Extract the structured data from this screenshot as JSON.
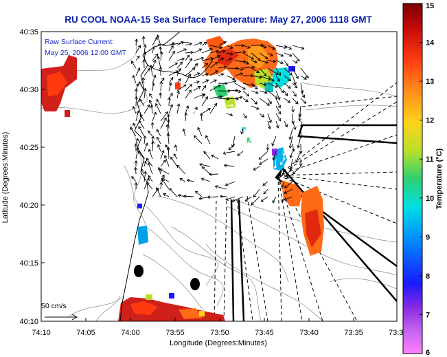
{
  "chart_data": {
    "type": "heatmap",
    "title": "RU COOL  NOAA-15  Sea Surface Temperature:  May 27, 2006 1118 GMT",
    "xlabel": "Longitude (Degrees:Minutes)",
    "ylabel": "Latitude (Degrees:Minutes)",
    "x_tick_labels": [
      "74:10",
      "74:05",
      "74:00",
      "73:55",
      "73:50",
      "73:45",
      "73:40",
      "73:35",
      "73:3"
    ],
    "y_tick_labels": [
      "40:35",
      "40:30",
      "40:25",
      "40:20",
      "40:15",
      "40:10"
    ],
    "x_range": [
      "74:10",
      "73:30"
    ],
    "y_range": [
      "40:10",
      "40:35"
    ],
    "annotation_lines": [
      "Raw Surface Current:",
      "May 25, 2006 12:00 GMT"
    ],
    "vector_scale_label": "50 cm/s",
    "colorbar": {
      "label": "Temperature (°C)",
      "tick_labels": [
        "15",
        "14",
        "13",
        "12",
        "11",
        "10",
        "9",
        "8",
        "7",
        "6"
      ],
      "range": [
        6,
        15
      ],
      "colors": [
        "#ff80ff",
        "#8a2be2",
        "#1a1aff",
        "#0090ff",
        "#00e0e0",
        "#30d070",
        "#b8e02a",
        "#ffd21a",
        "#ff8c1a",
        "#ff3a10",
        "#c40a0a",
        "#7a0000"
      ]
    }
  }
}
